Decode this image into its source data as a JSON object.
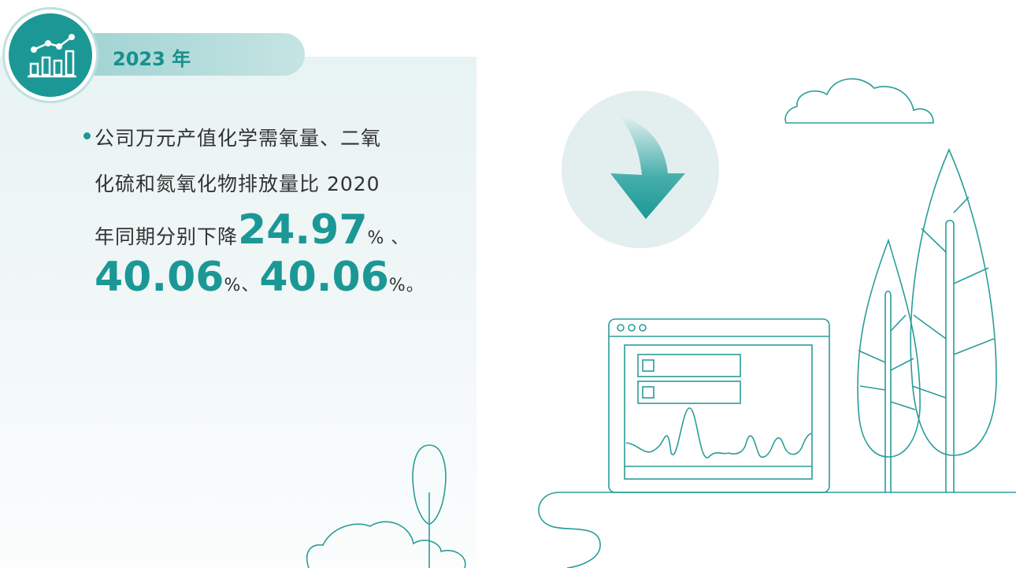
{
  "badge": {
    "year": "2023 年"
  },
  "bullet": {
    "lines": [
      "公司万元产值化学需氧量、二氧",
      "化硫和氮氧化物排放量比 2020",
      "年同期分别下降"
    ],
    "figures": [
      {
        "value": "24.97",
        "unit": "%",
        "sep": " 、"
      },
      {
        "value": "40.06",
        "unit": "%、"
      },
      {
        "value": "40.06",
        "unit": "%。"
      }
    ]
  }
}
